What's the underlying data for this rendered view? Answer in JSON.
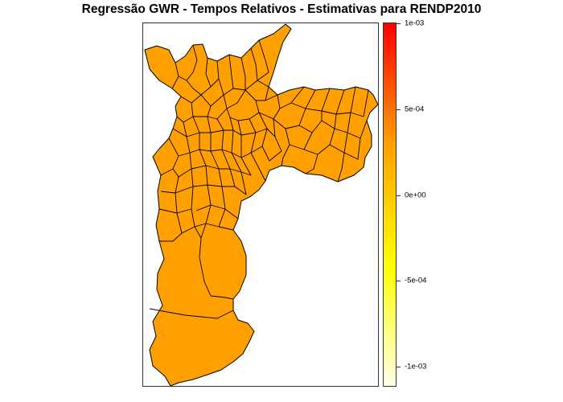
{
  "title": "Regressão GWR - Tempos Relativos - Estimativas para RENDP2010",
  "colors": {
    "fill": "#ff9f00",
    "stroke": "#000000",
    "frame": "#333333"
  },
  "legend": {
    "min": -0.001,
    "max": 0.001,
    "gradient": [
      "#ffffe6",
      "#ffff00",
      "#ff9f00",
      "#ff0000"
    ],
    "ticks": [
      {
        "value": 0.001,
        "label": "1e-03"
      },
      {
        "value": 0.0005,
        "label": "5e-04"
      },
      {
        "value": 0,
        "label": "0e+00"
      },
      {
        "value": -0.0005,
        "label": "-5e-04"
      },
      {
        "value": -0.001,
        "label": "-1e-03"
      }
    ]
  },
  "map": {
    "region_estimate": 0.0
  }
}
